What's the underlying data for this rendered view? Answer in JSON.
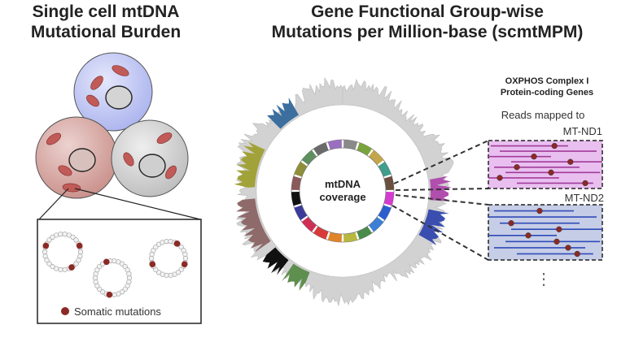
{
  "left_panel": {
    "title_line1": "Single cell mtDNA",
    "title_line2": "Mutational Burden",
    "legend_label": "Somatic mutations"
  },
  "right_panel": {
    "title_line1": "Gene Functional Group-wise",
    "title_line2": "Mutations per Million-base (scmtMPM)",
    "center_line1": "mtDNA",
    "center_line2": "coverage",
    "group_title_line1": "OXPHOS Complex I",
    "group_title_line2": "Protein-coding Genes",
    "reads_label_line1": "Reads mapped to",
    "gene1": "MT-ND1",
    "gene2": "MT-ND2",
    "ellipsis": "⋮"
  },
  "colors": {
    "cell_blue": "#c9cef4",
    "cell_red": "#d9a9a4",
    "cell_gray": "#d3d3d3",
    "mitochondria": "#c15b58",
    "mutation_dot": "#8b2a25",
    "nd1_box": "#e9bff0",
    "nd1_reads": "#a23c9a",
    "nd2_box": "#c6cde6",
    "nd2_reads": "#2f4cb8"
  }
}
